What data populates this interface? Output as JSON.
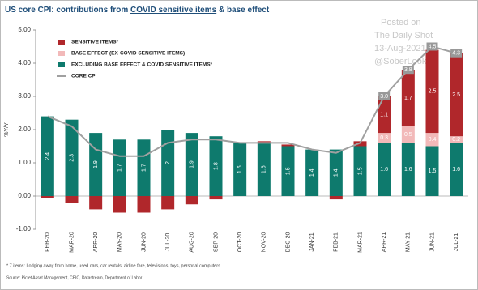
{
  "chart_data": {
    "type": "bar",
    "title": [
      "US core CPI: contributions from ",
      "COVID sensitive items",
      " & base effect"
    ],
    "ylabel": "%Y/Y",
    "categories": [
      "FEB-20",
      "MAR-20",
      "APR-20",
      "MAY-20",
      "JUN-20",
      "JUL-20",
      "AUG-20",
      "SEP-20",
      "OCT-20",
      "NOV-20",
      "DEC-20",
      "JAN-21",
      "FEB-21",
      "MAR-21",
      "APR-21",
      "MAY-21",
      "JUN-21",
      "JUL-21"
    ],
    "series": [
      {
        "name": "SENSITIVE ITEMS*",
        "color": "#b0272b",
        "values": [
          -0.05,
          -0.2,
          -0.4,
          -0.5,
          -0.5,
          -0.4,
          -0.25,
          -0.1,
          0,
          0.05,
          0.05,
          0,
          -0.1,
          0.15,
          1.1,
          1.7,
          2.5,
          2.5
        ]
      },
      {
        "name": "BASE EFFECT (EX-COVID SENSITIVE ITEMS)",
        "color": "#f2b9b9",
        "values": [
          0,
          0,
          0,
          0,
          0,
          0,
          0,
          0,
          0,
          0,
          0,
          0,
          0,
          0,
          0.3,
          0.5,
          0.4,
          0.2
        ]
      },
      {
        "name": "EXCLUDING BASE EFFECT & COVID SENSITIVE ITEMS*",
        "color": "#0e7a6d",
        "values": [
          2.4,
          2.3,
          1.9,
          1.7,
          1.7,
          2.0,
          1.9,
          1.8,
          1.6,
          1.6,
          1.5,
          1.4,
          1.4,
          1.5,
          1.6,
          1.6,
          1.5,
          1.6
        ]
      },
      {
        "name": "CORE CPI",
        "type": "line",
        "color": "#a0a0a0",
        "values": [
          2.4,
          2.1,
          1.4,
          1.2,
          1.2,
          1.6,
          1.7,
          1.7,
          1.6,
          1.6,
          1.6,
          1.4,
          1.3,
          1.6,
          3.0,
          3.8,
          4.5,
          4.3
        ],
        "value_labels": [
          null,
          null,
          null,
          null,
          null,
          null,
          null,
          null,
          null,
          null,
          null,
          null,
          null,
          null,
          "3.0",
          "3.8",
          "4.5",
          "4.3"
        ]
      }
    ],
    "ylim": [
      -1,
      5
    ],
    "yticks": [
      {
        "value": -1,
        "label": "-1.00"
      },
      {
        "value": 0,
        "label": "0.00"
      },
      {
        "value": 1,
        "label": "1.00"
      },
      {
        "value": 2,
        "label": "2.00"
      },
      {
        "value": 3,
        "label": "3.00"
      },
      {
        "value": 4,
        "label": "4.00"
      },
      {
        "value": 5,
        "label": "5.00"
      }
    ],
    "watermark": [
      "Posted on",
      "The Daily Shot",
      "13-Aug-2021",
      "@SoberLook"
    ],
    "footnote": "* 7 items: Lodging away from home, used cars, car rentals, airline fare, televisions, toys, personal computers",
    "source": "Source: Pictet Asset Management, CEIC, Datastream, Department of Labor"
  }
}
